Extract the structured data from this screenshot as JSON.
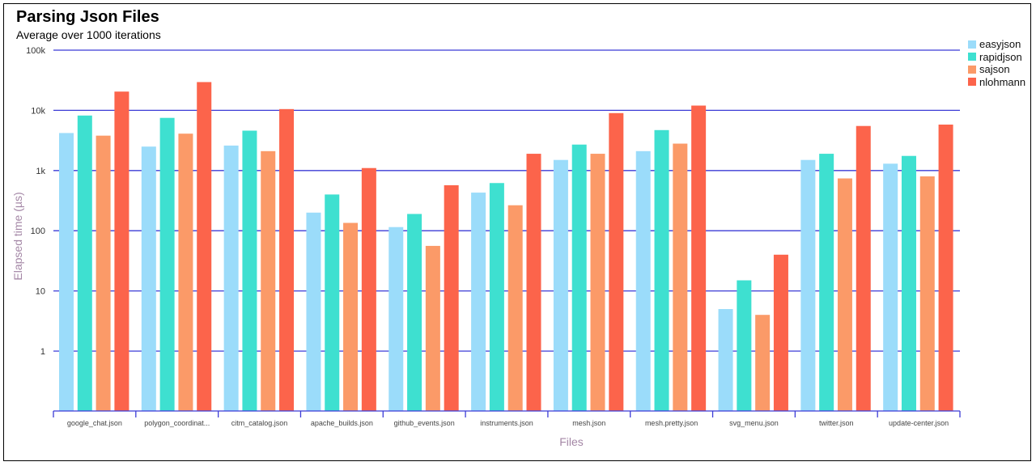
{
  "colors": {
    "grid": "#3b3bd6",
    "axis": "#3b3bd6",
    "series": [
      "#9bdcfa",
      "#3ee0d0",
      "#fb9a68",
      "#fc644b"
    ]
  },
  "chart_data": {
    "type": "bar",
    "title": "Parsing Json Files",
    "subtitle": "Average over 1000 iterations",
    "xlabel": "Files",
    "ylabel": "Elapsed time (µs)",
    "yscale": "log",
    "ylim": [
      0.1,
      100000
    ],
    "yticks": [
      1,
      10,
      100,
      1000,
      10000,
      100000
    ],
    "ytick_labels": [
      "1",
      "10",
      "100",
      "1k",
      "10k",
      "100k"
    ],
    "grid": true,
    "legend_position": "top-right",
    "categories": [
      "google_chat.json",
      "polygon_coordinat...",
      "citm_catalog.json",
      "apache_builds.json",
      "github_events.json",
      "instruments.json",
      "mesh.json",
      "mesh.pretty.json",
      "svg_menu.json",
      "twitter.json",
      "update-center.json"
    ],
    "series": [
      {
        "name": "easyjson",
        "values": [
          4200,
          2500,
          2600,
          200,
          115,
          430,
          1500,
          2100,
          5,
          1500,
          1300
        ]
      },
      {
        "name": "rapidjson",
        "values": [
          8200,
          7500,
          4600,
          400,
          190,
          620,
          2700,
          4700,
          15,
          1900,
          1750
        ]
      },
      {
        "name": "sajson",
        "values": [
          3800,
          4100,
          2100,
          135,
          56,
          265,
          1900,
          2800,
          4,
          740,
          800
        ]
      },
      {
        "name": "nlohmann",
        "values": [
          20500,
          29500,
          10500,
          1100,
          570,
          1900,
          9000,
          12000,
          40,
          5500,
          5800
        ]
      }
    ]
  }
}
